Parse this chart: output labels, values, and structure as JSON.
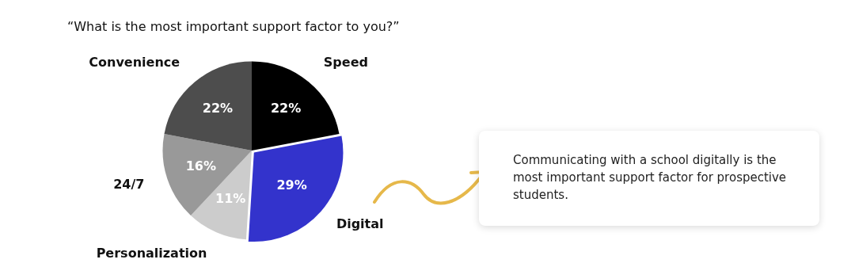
{
  "chart_data": {
    "type": "pie",
    "title": "“What is the most important support factor to you?”",
    "categories": [
      "Speed",
      "Digital",
      "Personalization",
      "24/7",
      "Convenience"
    ],
    "values": [
      22,
      29,
      11,
      16,
      22
    ],
    "colors": [
      "#000000",
      "#3333cc",
      "#cccccc",
      "#999999",
      "#4d4d4d"
    ],
    "value_labels": [
      "22%",
      "29%",
      "11%",
      "16%",
      "22%"
    ],
    "annotations": [
      "Communicating with a school digitally is the most important support factor for prospective students."
    ]
  }
}
